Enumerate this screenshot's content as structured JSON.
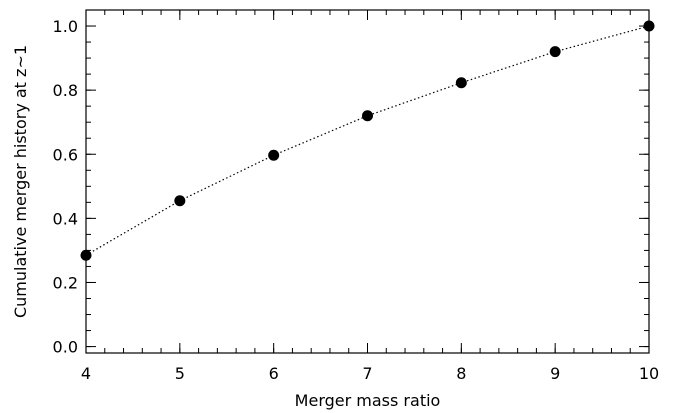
{
  "chart_data": {
    "type": "scatter",
    "title": "",
    "xlabel": "Merger mass ratio",
    "ylabel": "Cumulative merger history at z~1",
    "xlim": [
      4,
      10
    ],
    "ylim": [
      -0.02,
      1.05
    ],
    "xticks": [
      4,
      5,
      6,
      7,
      8,
      9,
      10
    ],
    "xtick_labels": [
      "4",
      "5",
      "6",
      "7",
      "8",
      "9",
      "10"
    ],
    "yticks": [
      0.0,
      0.2,
      0.4,
      0.6,
      0.8,
      1.0
    ],
    "ytick_labels": [
      "0.0",
      "0.2",
      "0.4",
      "0.6",
      "0.8",
      "1.0"
    ],
    "x_minor_step": 0.2,
    "y_minor_step": 0.05,
    "grid": false,
    "series": [
      {
        "marker": "filled-circle",
        "line_style": "dotted",
        "color": "#000000",
        "x": [
          4,
          5,
          6,
          7,
          8,
          9,
          10
        ],
        "y": [
          0.285,
          0.455,
          0.597,
          0.72,
          0.823,
          0.92,
          1.0
        ]
      }
    ]
  }
}
